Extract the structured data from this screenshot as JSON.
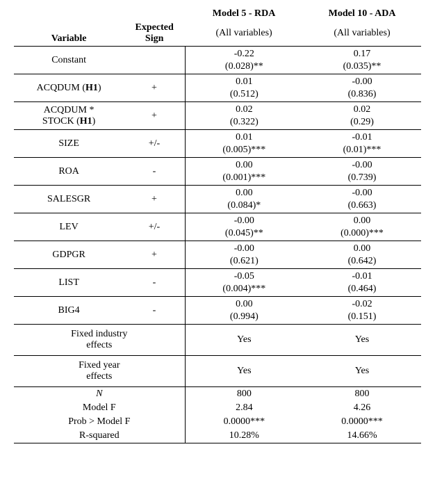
{
  "header": {
    "variable": "Variable",
    "expected_sign": "Expected Sign",
    "model1_title": "Model 5 - RDA",
    "model1_sub": "(All variables)",
    "model2_title": "Model 10 - ADA",
    "model2_sub": "(All variables)"
  },
  "rows": [
    {
      "var": "Constant",
      "sign": "",
      "m1_v": "-0.22",
      "m1_p": "(0.028)**",
      "m2_v": "0.17",
      "m2_p": "(0.035)**"
    },
    {
      "var": "ACQDUM (H1)",
      "sign": "+",
      "m1_v": "0.01",
      "m1_p": "(0.512)",
      "m2_v": "-0.00",
      "m2_p": "(0.836)"
    },
    {
      "var": "ACQDUM * STOCK (H1)",
      "sign": "+",
      "m1_v": "0.02",
      "m1_p": "(0.322)",
      "m2_v": "0.02",
      "m2_p": "(0.29)"
    },
    {
      "var": "SIZE",
      "sign": "+/-",
      "m1_v": "0.01",
      "m1_p": "(0.005)***",
      "m2_v": "-0.01",
      "m2_p": "(0.01)***"
    },
    {
      "var": "ROA",
      "sign": "-",
      "m1_v": "0.00",
      "m1_p": "(0.001)***",
      "m2_v": "-0.00",
      "m2_p": "(0.739)"
    },
    {
      "var": "SALESGR",
      "sign": "+",
      "m1_v": "0.00",
      "m1_p": "(0.084)*",
      "m2_v": "-0.00",
      "m2_p": "(0.663)"
    },
    {
      "var": "LEV",
      "sign": "+/-",
      "m1_v": "-0.00",
      "m1_p": "(0.045)**",
      "m2_v": "0.00",
      "m2_p": "(0.000)***"
    },
    {
      "var": "GDPGR",
      "sign": "+",
      "m1_v": "-0.00",
      "m1_p": "(0.621)",
      "m2_v": "0.00",
      "m2_p": "(0.642)"
    },
    {
      "var": "LIST",
      "sign": "-",
      "m1_v": "-0.05",
      "m1_p": "(0.004)***",
      "m2_v": "-0.01",
      "m2_p": "(0.464)"
    },
    {
      "var": "BIG4",
      "sign": "-",
      "m1_v": "0.00",
      "m1_p": "(0.994)",
      "m2_v": "-0.02",
      "m2_p": "(0.151)"
    }
  ],
  "fx": [
    {
      "var": "Fixed industry effects",
      "m1": "Yes",
      "m2": "Yes"
    },
    {
      "var": "Fixed year effects",
      "m1": "Yes",
      "m2": "Yes"
    }
  ],
  "stats": {
    "n_label": "N",
    "n_m1": "800",
    "n_m2": "800",
    "f_label": "Model F",
    "f_m1": "2.84",
    "f_m2": "4.26",
    "p_label": "Prob > Model F",
    "p_m1": "0.0000***",
    "p_m2": "0.0000***",
    "r_label": "R-squared",
    "r_m1": "10.28%",
    "r_m2": "14.66%"
  },
  "style": {
    "font_family": "Times New Roman",
    "font_size_pt": 11,
    "border_color": "#000000",
    "background_color": "#ffffff",
    "text_color": "#000000"
  }
}
